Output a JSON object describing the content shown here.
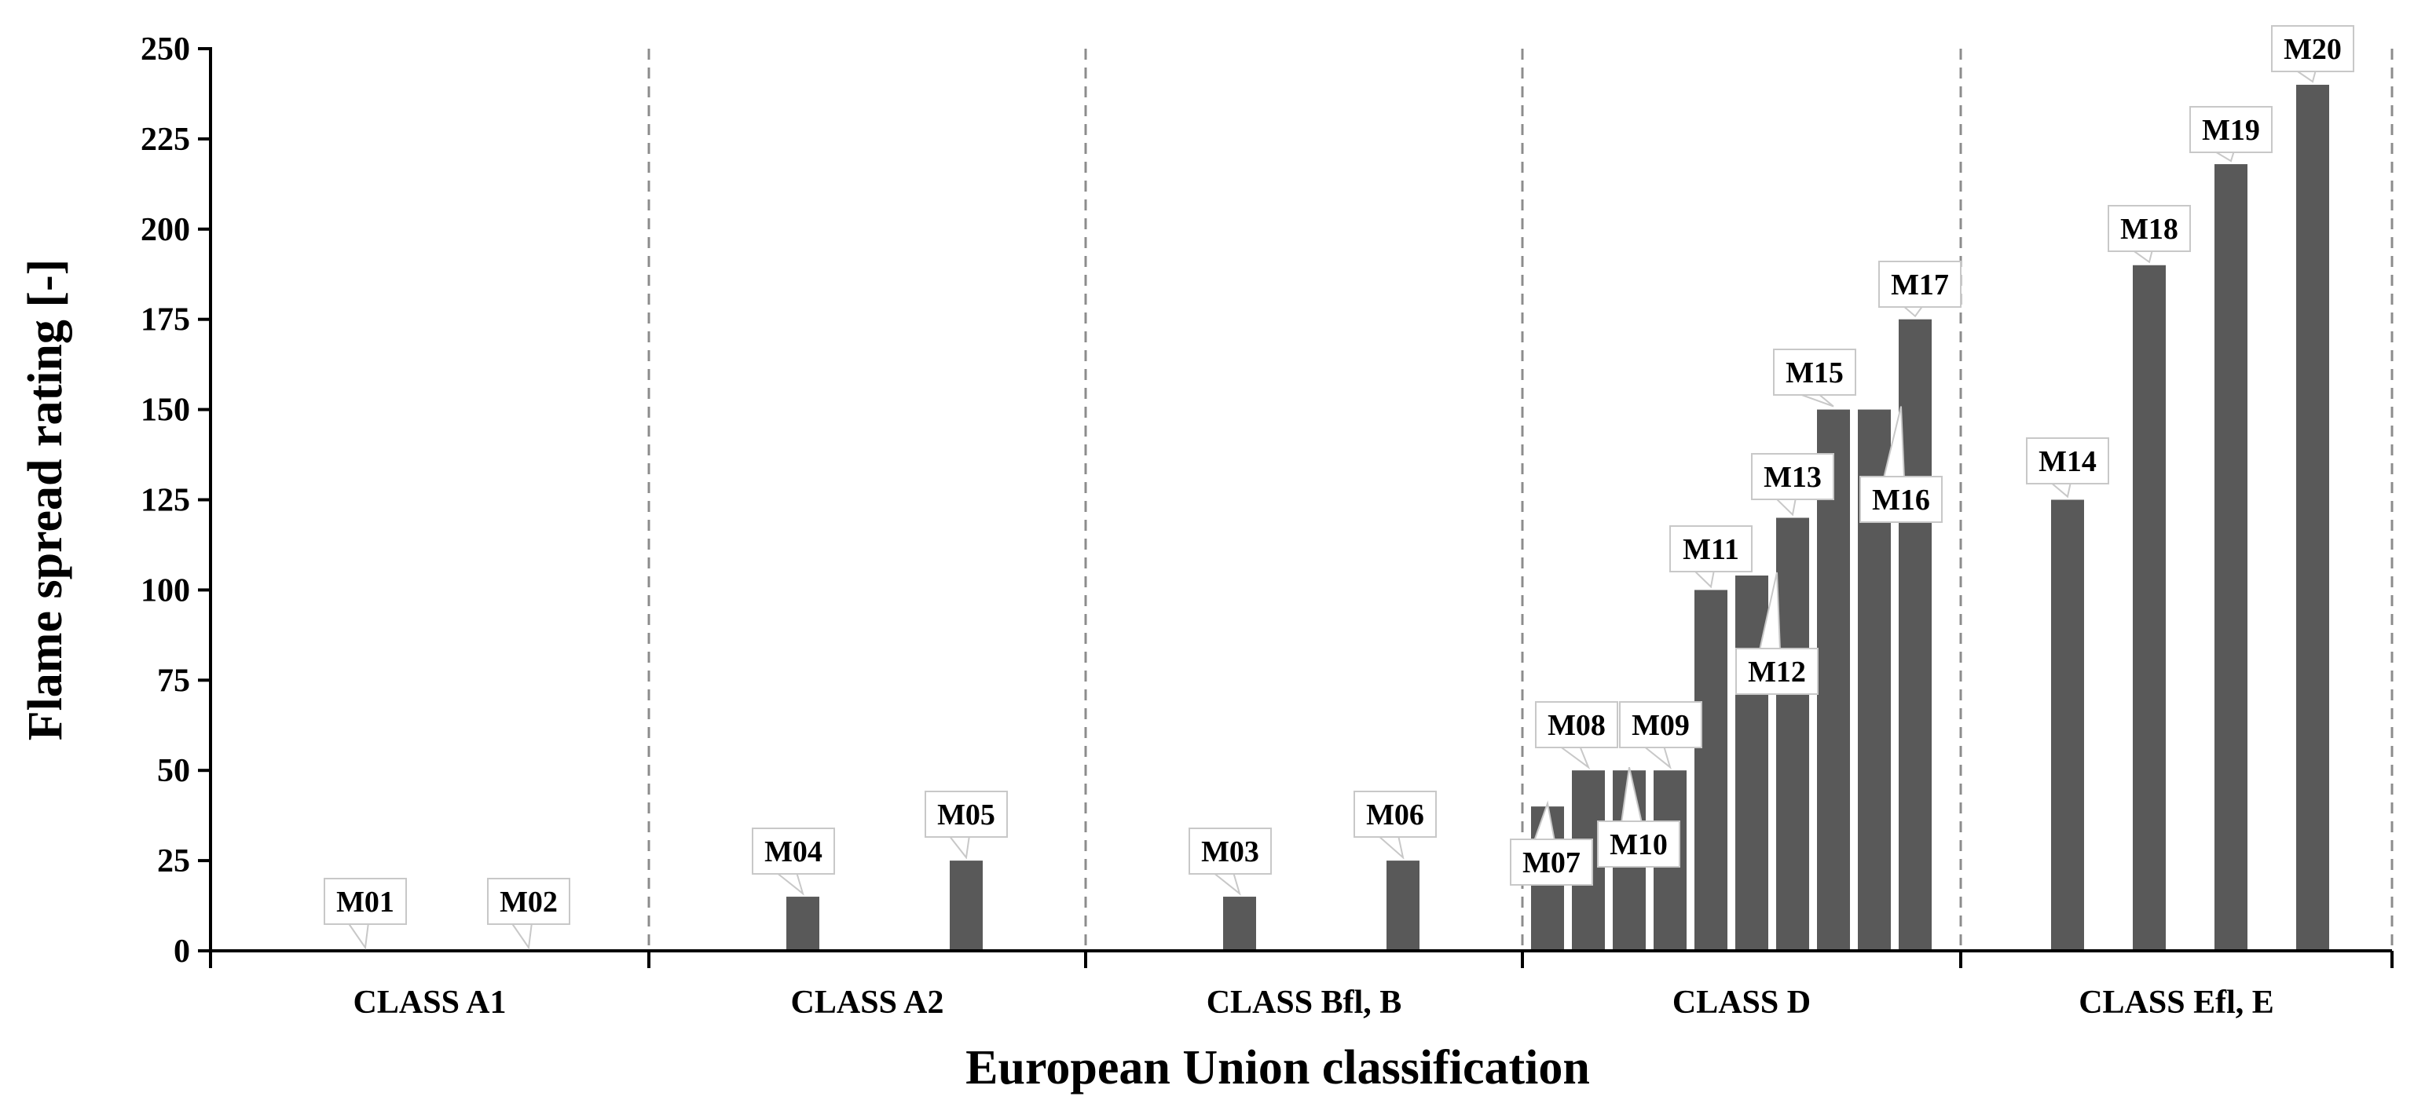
{
  "chart_data": {
    "type": "bar",
    "xlabel": "European Union classification",
    "ylabel": "Flame spread rating [-]",
    "ylim": [
      0,
      250
    ],
    "yticks": [
      0,
      25,
      50,
      75,
      100,
      125,
      150,
      175,
      200,
      225,
      250
    ],
    "grid": false,
    "legend": "none",
    "bar_color": "#595959",
    "categories": [
      "CLASS A1",
      "CLASS A2",
      "CLASS Bfl, B",
      "CLASS D",
      "CLASS Efl, E"
    ],
    "bars": [
      {
        "label": "M01",
        "category": "CLASS A1",
        "value": 0
      },
      {
        "label": "M02",
        "category": "CLASS A1",
        "value": 0
      },
      {
        "label": "M04",
        "category": "CLASS A2",
        "value": 15
      },
      {
        "label": "M05",
        "category": "CLASS A2",
        "value": 25
      },
      {
        "label": "M03",
        "category": "CLASS Bfl, B",
        "value": 15
      },
      {
        "label": "M06",
        "category": "CLASS Bfl, B",
        "value": 25
      },
      {
        "label": "M07",
        "category": "CLASS D",
        "value": 40
      },
      {
        "label": "M08",
        "category": "CLASS D",
        "value": 50
      },
      {
        "label": "M10",
        "category": "CLASS D",
        "value": 50
      },
      {
        "label": "M09",
        "category": "CLASS D",
        "value": 50
      },
      {
        "label": "M11",
        "category": "CLASS D",
        "value": 100
      },
      {
        "label": "M12",
        "category": "CLASS D",
        "value": 104
      },
      {
        "label": "M13",
        "category": "CLASS D",
        "value": 120
      },
      {
        "label": "M15",
        "category": "CLASS D",
        "value": 150
      },
      {
        "label": "M16",
        "category": "CLASS D",
        "value": 150
      },
      {
        "label": "M17",
        "category": "CLASS D",
        "value": 175
      },
      {
        "label": "M14",
        "category": "CLASS Efl, E",
        "value": 125
      },
      {
        "label": "M18",
        "category": "CLASS Efl, E",
        "value": 190
      },
      {
        "label": "M19",
        "category": "CLASS Efl, E",
        "value": 218
      },
      {
        "label": "M20",
        "category": "CLASS Efl, E",
        "value": 240
      }
    ]
  }
}
